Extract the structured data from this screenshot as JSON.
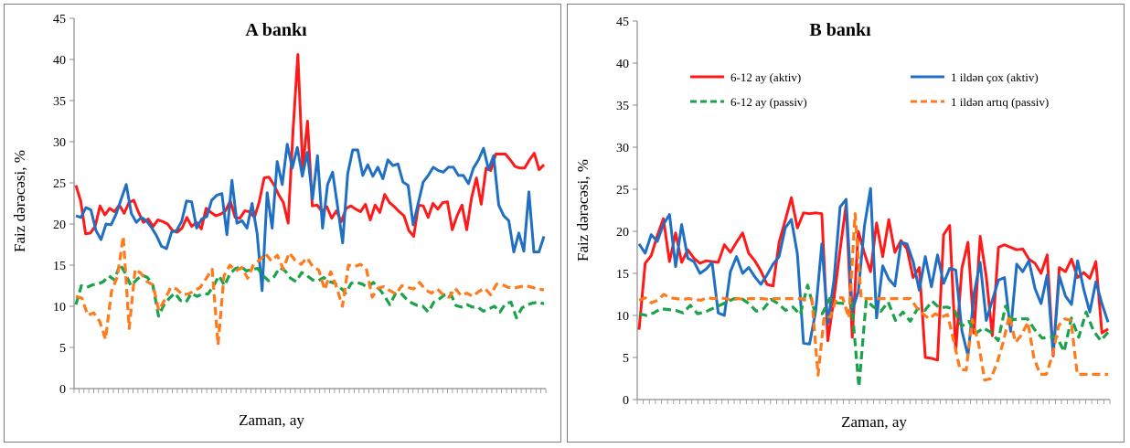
{
  "colors": {
    "red": "#ff1a1a",
    "blue": "#1f6fc2",
    "green": "#1aa34a",
    "orange": "#ff7a1a"
  },
  "chart_data": [
    {
      "type": "line",
      "title": "A bankı",
      "xlabel": "Zaman, ay",
      "ylabel": "Faiz dərəcəsi, %",
      "ylim": [
        0,
        45
      ],
      "yticks": [
        "0",
        "5",
        "10",
        "15",
        "20",
        "25",
        "30",
        "35",
        "40",
        "45"
      ],
      "series": [
        {
          "name": "",
          "color": "red",
          "dash": false,
          "values": [
            24.7,
            22.8,
            18.8,
            18.9,
            19.7,
            22.2,
            21.1,
            21.9,
            21.5,
            22.3,
            21.3,
            22.6,
            22.9,
            21.4,
            20.2,
            20.6,
            19.7,
            20.5,
            20.3,
            20.0,
            19.2,
            19.0,
            19.5,
            20.8,
            19.7,
            20.2,
            19.4,
            21.9,
            21.4,
            21.0,
            21.2,
            21.6,
            22.8,
            20.8,
            20.7,
            21.6,
            21.5,
            20.8,
            22.7,
            25.6,
            25.7,
            24.8,
            23.6,
            22.6,
            20.1,
            31.3,
            40.6,
            26.8,
            32.5,
            22.2,
            22.3,
            21.5,
            22.1,
            20.7,
            21.6,
            20.3,
            21.9,
            22.2,
            21.8,
            21.5,
            22.4,
            20.5,
            22.3,
            21.4,
            23.6,
            22.6,
            22.1,
            21.5,
            21.0,
            19.2,
            18.5,
            22.3,
            22.2,
            20.8,
            22.5,
            21.8,
            22.6,
            22.7,
            19.3,
            21.0,
            22.3,
            19.3,
            23.2,
            25.6,
            22.4,
            26.8,
            26.5,
            28.5,
            28.5,
            28.5,
            27.8,
            27.0,
            26.8,
            26.8,
            27.8,
            28.6,
            26.6,
            27.2
          ]
        },
        {
          "name": "",
          "color": "blue",
          "dash": false,
          "values": [
            21.0,
            20.8,
            22.0,
            21.7,
            19.2,
            18.1,
            20.0,
            19.9,
            21.2,
            23.0,
            24.8,
            21.3,
            20.2,
            20.8,
            20.4,
            19.6,
            18.6,
            17.3,
            17.0,
            19.0,
            19.2,
            20.3,
            22.8,
            22.7,
            19.5,
            20.6,
            20.9,
            22.9,
            23.5,
            23.7,
            18.7,
            25.3,
            20.1,
            20.4,
            19.5,
            22.5,
            18.9,
            11.9,
            23.8,
            19.5,
            27.6,
            24.8,
            29.7,
            26.8,
            29.3,
            25.8,
            28.7,
            23.0,
            28.3,
            19.5,
            24.8,
            26.3,
            22.1,
            17.7,
            26.1,
            29.0,
            29.0,
            25.9,
            27.2,
            25.8,
            26.9,
            25.5,
            27.8,
            27.1,
            27.3,
            25.1,
            24.7,
            19.9,
            22.5,
            25.1,
            25.9,
            26.9,
            26.5,
            26.3,
            26.9,
            26.9,
            25.9,
            25.9,
            24.9,
            26.8,
            27.8,
            29.2,
            26.6,
            28.3,
            22.3,
            21.0,
            20.4,
            16.6,
            18.9,
            16.7,
            23.9,
            16.6,
            16.6,
            18.5
          ]
        },
        {
          "name": "",
          "color": "green",
          "dash": true,
          "values": [
            10.2,
            12.5,
            12.3,
            12.6,
            12.7,
            13.0,
            13.7,
            13.2,
            15.1,
            14.0,
            12.5,
            13.2,
            13.8,
            13.5,
            12.5,
            8.8,
            10.2,
            11.0,
            11.6,
            10.7,
            10.5,
            11.6,
            11.2,
            11.5,
            11.5,
            12.5,
            13.7,
            12.5,
            14.0,
            14.6,
            14.8,
            14.3,
            14.5,
            14.6,
            13.7,
            13.1,
            13.6,
            14.7,
            14.3,
            13.4,
            13.0,
            14.1,
            13.7,
            13.2,
            13.1,
            13.5,
            13.0,
            12.8,
            12.3,
            11.6,
            12.8,
            12.9,
            12.7,
            12.3,
            12.9,
            12.2,
            11.3,
            10.2,
            11.5,
            11.6,
            10.9,
            10.4,
            10.1,
            10.0,
            9.3,
            10.5,
            10.9,
            11.4,
            11.6,
            10.1,
            9.9,
            10.2,
            9.9,
            9.9,
            9.4,
            9.7,
            10.0,
            9.3,
            10.3,
            10.5,
            8.6,
            9.8,
            10.2,
            10.4,
            10.5,
            10.3
          ]
        },
        {
          "name": "",
          "color": "orange",
          "dash": true,
          "values": [
            11.2,
            11.0,
            8.9,
            9.2,
            8.2,
            6.0,
            11.8,
            13.6,
            18.5,
            7.3,
            14.5,
            14.0,
            13.0,
            12.6,
            9.5,
            10.8,
            12.3,
            12.1,
            11.4,
            11.5,
            11.9,
            12.3,
            13.4,
            14.5,
            5.3,
            13.7,
            15.0,
            14.3,
            14.7,
            13.4,
            15.1,
            15.6,
            16.4,
            15.5,
            16.2,
            14.5,
            16.5,
            15.6,
            15.1,
            15.9,
            14.8,
            14.4,
            12.0,
            14.2,
            12.3,
            10.0,
            15.0,
            14.8,
            15.1,
            14.6,
            11.1,
            12.2,
            12.4,
            11.9,
            11.5,
            12.5,
            12.3,
            12.1,
            12.9,
            12.0,
            11.6,
            12.1,
            11.4,
            11.1,
            12.2,
            11.3,
            11.6,
            11.2,
            11.8,
            12.2,
            11.4,
            12.7,
            12.6,
            12.3,
            12.2,
            12.4,
            12.5,
            12.3,
            12.1,
            12.0
          ]
        }
      ]
    },
    {
      "type": "line",
      "title": "B bankı",
      "xlabel": "Zaman, ay",
      "ylabel": "Faiz dərəcəsi, %",
      "ylim": [
        0,
        45
      ],
      "yticks": [
        "0",
        "5",
        "10",
        "15",
        "20",
        "25",
        "30",
        "35",
        "40",
        "45"
      ],
      "legend_position": "top",
      "series": [
        {
          "name": "6-12 ay (aktiv)",
          "color": "red",
          "dash": false,
          "values": [
            8.3,
            16.2,
            17.1,
            19.5,
            21.5,
            16.4,
            19.8,
            16.3,
            17.8,
            16.8,
            16.2,
            16.5,
            16.4,
            16.3,
            18.4,
            17.5,
            18.7,
            19.8,
            17.4,
            16.5,
            15.3,
            13.7,
            13.5,
            18.7,
            21.3,
            24.0,
            20.4,
            22.2,
            22.1,
            22.2,
            22.1,
            7.0,
            12.0,
            17.8,
            23.2,
            7.4,
            20.0,
            17.4,
            15.2,
            21.0,
            17.0,
            21.4,
            17.5,
            18.9,
            17.9,
            14.5,
            15.7,
            5.0,
            4.9,
            4.7,
            19.6,
            20.7,
            5.8,
            15.6,
            18.7,
            7.9,
            19.4,
            14.6,
            7.6,
            18.1,
            18.4,
            18.1,
            17.8,
            17.9,
            16.7,
            16.2,
            15.0,
            17.2,
            5.2,
            15.7,
            15.2,
            16.7,
            14.5,
            15.1,
            14.4,
            16.4,
            7.9,
            8.4
          ]
        },
        {
          "name": "1 ildən çox (aktiv)",
          "color": "blue",
          "dash": false,
          "values": [
            18.5,
            17.4,
            19.6,
            18.8,
            20.8,
            22.0,
            15.8,
            20.8,
            16.8,
            16.4,
            15.0,
            15.5,
            16.3,
            10.3,
            10.0,
            15.2,
            17.0,
            15.0,
            15.7,
            14.6,
            13.7,
            14.8,
            16.1,
            17.0,
            20.4,
            21.4,
            17.3,
            6.7,
            6.6,
            10.5,
            18.5,
            9.1,
            14.2,
            22.9,
            23.8,
            10.6,
            12.8,
            20.6,
            25.1,
            9.7,
            15.9,
            14.3,
            13.5,
            18.7,
            18.5,
            16.4,
            13.0,
            17.0,
            13.4,
            17.2,
            13.8,
            15.6,
            15.4,
            8.2,
            5.2,
            12.6,
            16.3,
            9.4,
            11.8,
            14.2,
            14.5,
            8.1,
            16.1,
            15.2,
            16.5,
            13.2,
            11.4,
            14.8,
            5.4,
            14.7,
            12.3,
            11.3,
            16.5,
            13.1,
            10.4,
            14.0,
            11.4,
            9.2
          ]
        },
        {
          "name": "6-12 ay (passiv)",
          "color": "green",
          "dash": true,
          "values": [
            10.2,
            10.0,
            10.3,
            10.8,
            10.7,
            10.6,
            10.3,
            11.2,
            10.2,
            10.4,
            10.8,
            11.2,
            11.6,
            12.0,
            12.0,
            11.4,
            10.5,
            10.8,
            11.9,
            11.4,
            10.6,
            11.0,
            10.1,
            13.6,
            10.3,
            10.2,
            12.0,
            11.5,
            11.4,
            11.5,
            1.5,
            11.8,
            11.0,
            10.5,
            11.6,
            9.4,
            10.4,
            9.3,
            10.8,
            10.6,
            11.7,
            10.9,
            11.0,
            10.7,
            8.7,
            9.3,
            7.9,
            8.5,
            8.0,
            7.0,
            11.1,
            9.5,
            9.6,
            9.6,
            8.3,
            7.3,
            7.4,
            7.5,
            5.7,
            9.7,
            7.4,
            10.4,
            8.2,
            7.0,
            8.0
          ]
        },
        {
          "name": "1 ildən artıq (passiv)",
          "color": "orange",
          "dash": true,
          "values": [
            11.8,
            12.1,
            11.5,
            11.8,
            12.5,
            12.1,
            12.0,
            11.9,
            12.0,
            11.9,
            11.8,
            12.1,
            12.0,
            12.1,
            12.0,
            11.8,
            12.0,
            11.9,
            12.0,
            12.0,
            12.0,
            11.9,
            12.0,
            12.0,
            12.0,
            12.0,
            12.0,
            11.9,
            12.0,
            2.9,
            9.9,
            9.8,
            12.1,
            12.1,
            9.7,
            22.1,
            12.0,
            12.0,
            12.0,
            12.0,
            12.0,
            12.0,
            12.0,
            12.0,
            12.0,
            10.9,
            10.2,
            9.6,
            10.2,
            9.8,
            10.1,
            6.9,
            3.6,
            3.5,
            9.5,
            6.7,
            2.3,
            2.5,
            4.3,
            6.8,
            10.0,
            6.8,
            7.7,
            9.2,
            4.9,
            3.0,
            3.0,
            5.3,
            8.8,
            9.6,
            9.4,
            3.0,
            3.0,
            3.0,
            3.0,
            3.0,
            3.0
          ]
        }
      ]
    }
  ]
}
